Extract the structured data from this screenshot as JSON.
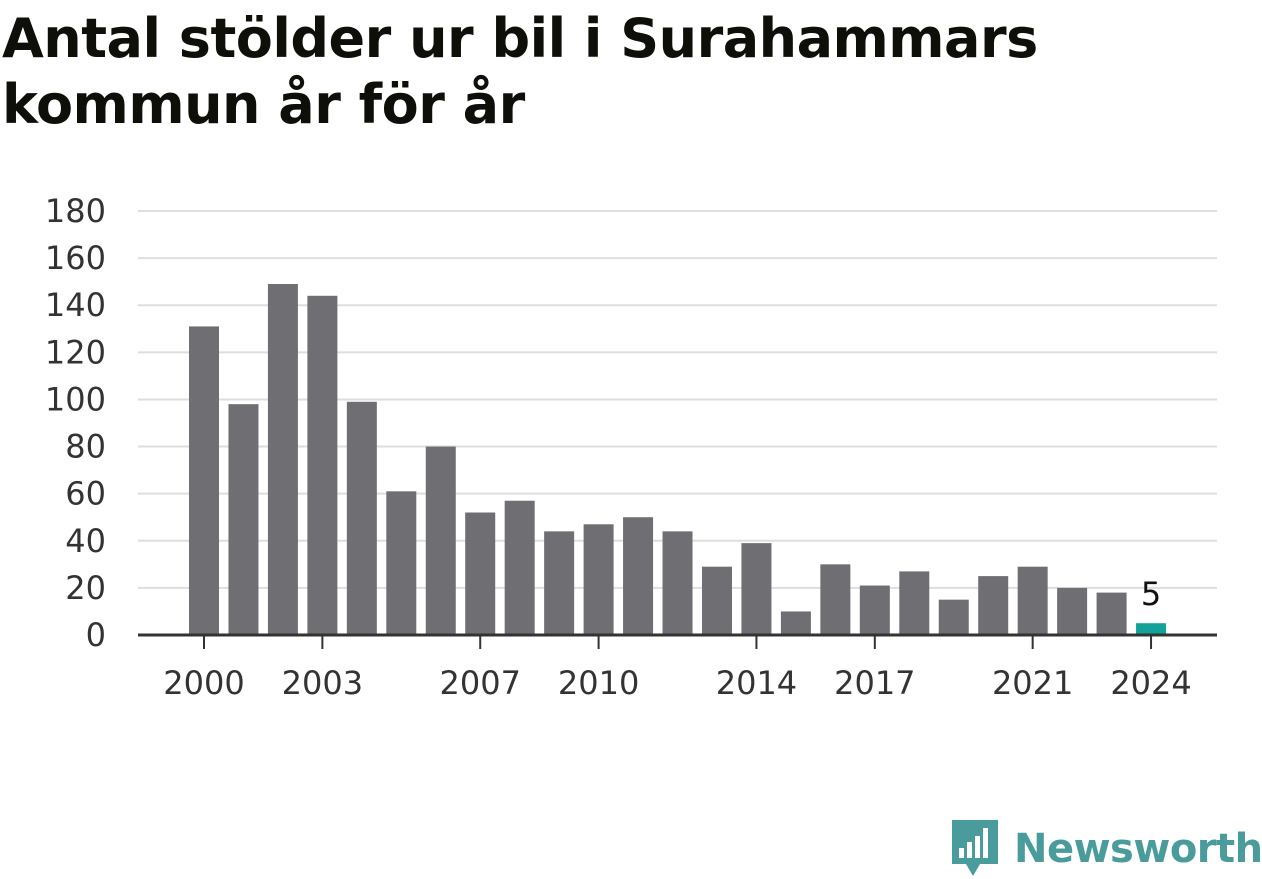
{
  "chart_data": {
    "type": "bar",
    "title": "Antal stölder ur bil i Surahammars kommun år för år",
    "xlabel": "",
    "ylabel": "",
    "ylim": [
      0,
      180
    ],
    "yticks": [
      0,
      20,
      40,
      60,
      80,
      100,
      120,
      140,
      160,
      180
    ],
    "xtick_labels": [
      "2000",
      "2003",
      "2007",
      "2010",
      "2014",
      "2017",
      "2021",
      "2024"
    ],
    "grid": true,
    "legend": "none",
    "categories": [
      2000,
      2001,
      2002,
      2003,
      2004,
      2005,
      2006,
      2007,
      2008,
      2009,
      2010,
      2011,
      2012,
      2013,
      2014,
      2015,
      2016,
      2017,
      2018,
      2019,
      2020,
      2021,
      2022,
      2023,
      2024
    ],
    "values": [
      131,
      98,
      149,
      144,
      99,
      61,
      80,
      52,
      57,
      44,
      47,
      50,
      44,
      29,
      39,
      10,
      30,
      21,
      27,
      15,
      25,
      29,
      20,
      18,
      5
    ],
    "highlight": {
      "category": 2024,
      "value_label": "5"
    },
    "colors": {
      "bar": "#6f6e73",
      "highlight": "#13a29a",
      "grid": "#dedede",
      "axis": "#333333"
    }
  },
  "brand": {
    "name": "Newsworthy",
    "logo_icon": "newsworthy-logo-icon",
    "color": "#4a9b9b"
  }
}
